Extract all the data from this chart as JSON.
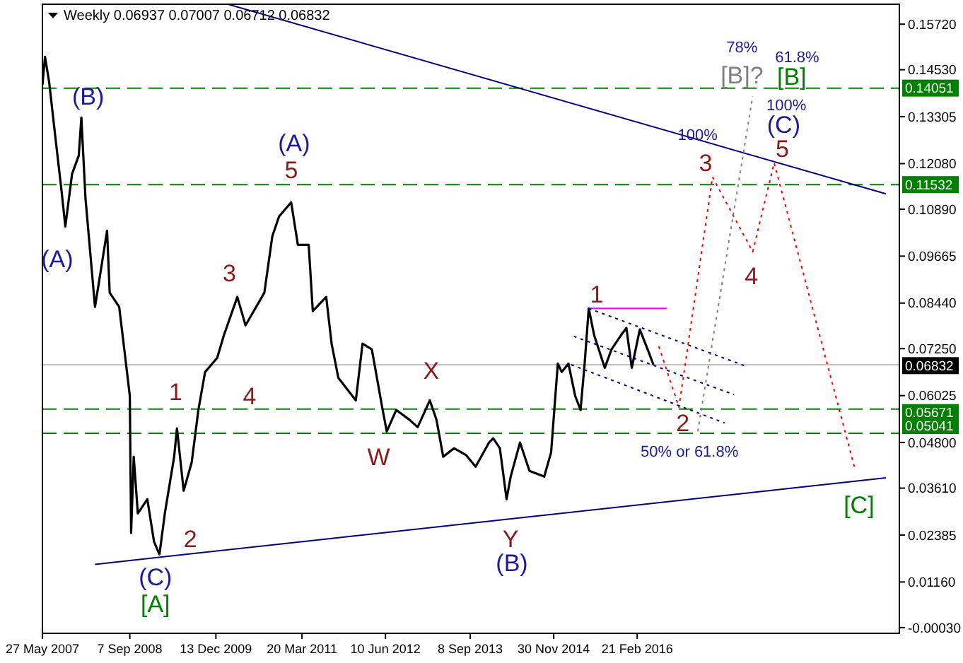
{
  "chart_data": {
    "type": "line",
    "title": "Weekly 0.06937 0.07007 0.06712 0.06832",
    "xlim": [
      "2007-05-27",
      "2019-12-29"
    ],
    "ylim": [
      -0.0018,
      0.1624
    ],
    "xticks": [
      {
        "value": "2007-05-27",
        "label": "27 May 2007"
      },
      {
        "value": "2008-09-07",
        "label": "7 Sep 2008"
      },
      {
        "value": "2009-12-13",
        "label": "13 Dec 2009"
      },
      {
        "value": "2011-03-20",
        "label": "20 Mar 2011"
      },
      {
        "value": "2012-06-10",
        "label": "10 Jun 2012"
      },
      {
        "value": "2013-09-08",
        "label": "8 Sep 2013"
      },
      {
        "value": "2014-11-30",
        "label": "30 Nov 2014"
      },
      {
        "value": "2016-02-21",
        "label": "21 Feb 2016"
      }
    ],
    "yticks": [
      {
        "value": 0.1572,
        "label": "0.15720"
      },
      {
        "value": 0.1453,
        "label": "0.14530"
      },
      {
        "value": 0.13305,
        "label": "0.13305"
      },
      {
        "value": 0.1208,
        "label": "0.12080"
      },
      {
        "value": 0.1089,
        "label": "0.10890"
      },
      {
        "value": 0.09665,
        "label": "0.09665"
      },
      {
        "value": 0.0844,
        "label": "0.08440"
      },
      {
        "value": 0.0725,
        "label": "0.07250"
      },
      {
        "value": 0.06025,
        "label": "0.06025"
      },
      {
        "value": 0.048,
        "label": "0.04800"
      },
      {
        "value": 0.0361,
        "label": "0.03610"
      },
      {
        "value": 0.02385,
        "label": "0.02385"
      },
      {
        "value": 0.0116,
        "label": "0.01160"
      },
      {
        "value": -0.0003,
        "label": "-0.00030"
      }
    ],
    "grid": false,
    "marker": "none",
    "series": [
      {
        "color": "#000000",
        "line_style": "solid",
        "x": [
          "2007-05-27",
          "2007-06-10",
          "2007-07-02",
          "2007-08-07",
          "2007-09-05",
          "2007-09-27",
          "2007-11-02",
          "2007-12-08",
          "2007-12-22",
          "2008-01-13",
          "2008-02-04",
          "2008-03-04",
          "2008-03-25",
          "2008-05-08",
          "2008-05-22",
          "2008-07-12",
          "2008-08-02",
          "2008-09-07",
          "2008-09-14",
          "2008-09-28",
          "2008-10-20",
          "2008-12-10",
          "2009-01-15",
          "2009-02-13",
          "2009-03-14",
          "2009-05-03",
          "2009-05-18",
          "2009-06-23",
          "2009-08-05",
          "2009-09-10",
          "2009-10-16",
          "2009-12-20",
          "2010-01-25",
          "2010-04-07",
          "2010-05-21",
          "2010-08-30",
          "2010-10-12",
          "2010-11-17",
          "2011-01-21",
          "2011-02-26",
          "2011-04-25",
          "2011-05-17",
          "2011-07-28",
          "2011-08-26",
          "2011-10-01",
          "2012-01-03",
          "2012-02-08",
          "2012-03-29",
          "2012-05-26",
          "2012-06-17",
          "2012-08-07",
          "2012-10-18",
          "2012-11-30",
          "2013-02-03",
          "2013-03-11",
          "2013-04-16",
          "2013-06-13",
          "2013-08-17",
          "2013-10-07",
          "2013-12-18",
          "2014-01-09",
          "2014-02-14",
          "2014-03-22",
          "2014-04-13",
          "2014-06-02",
          "2014-07-23",
          "2014-10-10",
          "2014-11-16",
          "2014-12-22",
          "2015-01-12",
          "2015-02-17",
          "2015-03-25",
          "2015-04-23",
          "2015-05-15",
          "2015-06-06",
          "2015-07-05",
          "2015-08-31",
          "2015-10-06",
          "2015-11-26",
          "2015-12-25",
          "2016-01-23",
          "2016-03-06",
          "2016-04-26",
          "2016-05-18"
        ],
        "values": [
          0.1413,
          0.1487,
          0.1421,
          0.1266,
          0.1144,
          0.1044,
          0.1181,
          0.1229,
          0.1328,
          0.1118,
          0.0996,
          0.0834,
          0.0897,
          0.1033,
          0.0871,
          0.0834,
          0.0749,
          0.0602,
          0.0244,
          0.0443,
          0.0295,
          0.0332,
          0.0221,
          0.0188,
          0.0295,
          0.0443,
          0.0517,
          0.0354,
          0.0428,
          0.0565,
          0.0664,
          0.0701,
          0.076,
          0.086,
          0.0786,
          0.0871,
          0.1019,
          0.107,
          0.1107,
          0.0996,
          0.0996,
          0.0823,
          0.086,
          0.0738,
          0.0649,
          0.059,
          0.0738,
          0.0723,
          0.0565,
          0.0509,
          0.0565,
          0.0539,
          0.052,
          0.059,
          0.0539,
          0.0443,
          0.0465,
          0.0447,
          0.0417,
          0.048,
          0.0491,
          0.0465,
          0.0332,
          0.0391,
          0.048,
          0.0406,
          0.0391,
          0.0454,
          0.0686,
          0.0664,
          0.0686,
          0.0602,
          0.0565,
          0.0686,
          0.083,
          0.076,
          0.0675,
          0.0723,
          0.076,
          0.0779,
          0.0675,
          0.0775,
          0.0712,
          0.0683
        ]
      },
      {
        "color": "#000080",
        "line_style": "solid",
        "x": [
          "2010-02-16",
          "2019-10-18"
        ],
        "values": [
          0.1624,
          0.1129
        ]
      },
      {
        "color": "#000080",
        "line_style": "solid",
        "x": [
          "2008-03-04",
          "2019-10-18"
        ],
        "values": [
          0.0162,
          0.0388
        ]
      },
      {
        "color": "#ff0000",
        "line_style": "dotted",
        "x": [
          "2016-06-16",
          "2016-10-02",
          "2017-03-31",
          "2017-11-02",
          "2018-02-25",
          "2019-05-05"
        ],
        "values": [
          0.0731,
          0.0572,
          0.1173,
          0.0978,
          0.121,
          0.041
        ]
      },
      {
        "color": "#808080",
        "line_style": "dotted",
        "x": [
          "2017-01-11",
          "2017-11-02"
        ],
        "values": [
          0.0509,
          0.1384
        ]
      },
      {
        "color": "#ff00ff",
        "line_style": "solid",
        "x": [
          "2015-06-06",
          "2016-07-28"
        ],
        "values": [
          0.083,
          0.083
        ]
      },
      {
        "color": "#000080",
        "line_style": "dotted",
        "x": [
          "2015-06-06",
          "2017-09-28"
        ],
        "values": [
          0.083,
          0.0679
        ]
      },
      {
        "color": "#000080",
        "line_style": "dotted",
        "x": [
          "2015-03-18",
          "2017-07-25"
        ],
        "values": [
          0.0757,
          0.0605
        ]
      },
      {
        "color": "#000080",
        "line_style": "dotted",
        "x": [
          "2015-03-04",
          "2017-06-04"
        ],
        "values": [
          0.0683,
          0.0531
        ]
      }
    ],
    "ref_lines": [
      {
        "axis": "y",
        "value": 0.14051,
        "label": "0.14051",
        "color": "#008000",
        "line_style": "dashed"
      },
      {
        "axis": "y",
        "value": 0.11532,
        "label": "0.11532",
        "color": "#008000",
        "line_style": "dashed"
      },
      {
        "axis": "y",
        "value": 0.06832,
        "label": "0.06832",
        "color": "#c0c0c0",
        "line_style": "solid"
      },
      {
        "axis": "y",
        "value": 0.05671,
        "label": "0.05671",
        "color": "#008000",
        "line_style": "dashed"
      },
      {
        "axis": "y",
        "value": 0.05041,
        "label": "0.05041",
        "color": "#008000",
        "line_style": "dashed"
      }
    ],
    "annotations": [
      "(B)",
      "(A)",
      "(A)",
      "(C)",
      "(B)",
      "(C)",
      "100%",
      "100%",
      "78%",
      "61.8%",
      "50% or 61.8%",
      "5",
      "3",
      "1",
      "4",
      "2",
      "W",
      "X",
      "Y",
      "1",
      "3",
      "4",
      "5",
      "2",
      "[B]?",
      "[A]",
      "[B]",
      "[C]"
    ]
  }
}
